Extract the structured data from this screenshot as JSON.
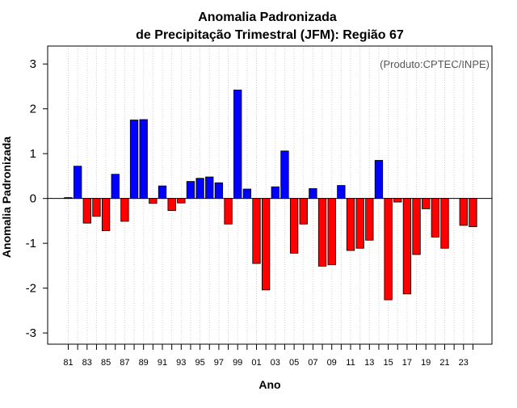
{
  "chart_data": {
    "type": "bar",
    "title": "Anomalia Padronizada",
    "subtitle": "de Precipitação Trimestral (JFM): Região 67",
    "xlabel": "Ano",
    "ylabel": "Anomalia Padronizada",
    "annotation": "(Produto:CPTEC/INPE)",
    "ylim": [
      -3.25,
      3.4
    ],
    "yticks": [
      -3,
      -2,
      -1,
      0,
      1,
      2,
      3
    ],
    "grid": "vertical dotted",
    "positive_color": "#0000ff",
    "negative_color": "#ff0000",
    "tick_years": [
      "81",
      "83",
      "85",
      "87",
      "89",
      "91",
      "93",
      "95",
      "97",
      "99",
      "01",
      "03",
      "05",
      "07",
      "09",
      "11",
      "13",
      "15",
      "17",
      "19",
      "21",
      "23"
    ],
    "categories": [
      "1981",
      "1982",
      "1983",
      "1984",
      "1985",
      "1986",
      "1987",
      "1988",
      "1989",
      "1990",
      "1991",
      "1992",
      "1993",
      "1994",
      "1995",
      "1996",
      "1997",
      "1998",
      "1999",
      "2000",
      "2001",
      "2002",
      "2003",
      "2004",
      "2005",
      "2006",
      "2007",
      "2008",
      "2009",
      "2010",
      "2011",
      "2012",
      "2013",
      "2014",
      "2015",
      "2016",
      "2017",
      "2018",
      "2019",
      "2020",
      "2021",
      "2022",
      "2023",
      "2024"
    ],
    "values": [
      0.02,
      0.72,
      -0.55,
      -0.4,
      -0.72,
      0.54,
      -0.51,
      1.75,
      1.76,
      -0.11,
      0.28,
      -0.27,
      -0.1,
      0.38,
      0.45,
      0.48,
      0.35,
      -0.57,
      2.42,
      0.21,
      -1.45,
      -2.04,
      0.26,
      1.06,
      -1.22,
      -0.57,
      0.22,
      -1.51,
      -1.48,
      0.29,
      -1.16,
      -1.11,
      -0.93,
      0.85,
      -2.26,
      -0.08,
      -2.13,
      -1.25,
      -0.23,
      -0.86,
      -1.11,
      0.0,
      -0.6,
      -0.63
    ]
  }
}
